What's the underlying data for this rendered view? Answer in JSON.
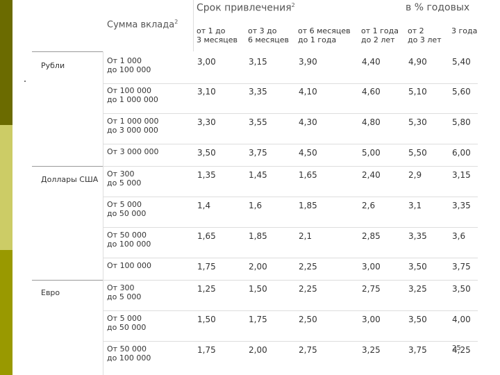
{
  "header": {
    "term_title": "Срок привлечения",
    "term_sup": "2",
    "unit": "в % годовых",
    "amount_title": "Сумма вклада",
    "amount_sup": "2"
  },
  "columns": [
    "от 1 до\n3 месяцев",
    "от 3 до\n6 месяцев",
    "от 6 месяцев\nдо 1 года",
    "от 1 года\nдо 2 лет",
    "от 2\nдо 3 лет",
    "3 года"
  ],
  "currencies": [
    "Рубли",
    "Доллары США",
    "Евро"
  ],
  "rows": [
    {
      "amount": "От 1 000\nдо 100 000",
      "values": [
        "3,00",
        "3,15",
        "3,90",
        "4,40",
        "4,90",
        "5,40"
      ]
    },
    {
      "amount": "От 100 000\nдо 1 000 000",
      "values": [
        "3,10",
        "3,35",
        "4,10",
        "4,60",
        "5,10",
        "5,60"
      ]
    },
    {
      "amount": "От 1 000 000\nдо 3 000 000",
      "values": [
        "3,30",
        "3,55",
        "4,30",
        "4,80",
        "5,30",
        "5,80"
      ]
    },
    {
      "amount": "От 3 000 000",
      "values": [
        "3,50",
        "3,75",
        "4,50",
        "5,00",
        "5,50",
        "6,00"
      ]
    },
    {
      "amount": "От 300\nдо 5 000",
      "values": [
        "1,35",
        "1,45",
        "1,65",
        "2,40",
        "2,9",
        "3,15"
      ]
    },
    {
      "amount": "От 5 000\nдо 50 000",
      "values": [
        "1,4",
        "1,6",
        "1,85",
        "2,6",
        "3,1",
        "3,35"
      ]
    },
    {
      "amount": "От 50 000\nдо 100 000",
      "values": [
        "1,65",
        "1,85",
        "2,1",
        "2,85",
        "3,35",
        "3,6"
      ]
    },
    {
      "amount": "От 100 000",
      "values": [
        "1,75",
        "2,00",
        "2,25",
        "3,00",
        "3,50",
        "3,75"
      ]
    },
    {
      "amount": "От 300\nдо 5 000",
      "values": [
        "1,25",
        "1,50",
        "2,25",
        "2,75",
        "3,25",
        "3,50"
      ]
    },
    {
      "amount": "От 5 000\nдо 50 000",
      "values": [
        "1,50",
        "1,75",
        "2,50",
        "3,00",
        "3,50",
        "4,00"
      ]
    },
    {
      "amount": "От 50 000\nдо 100 000",
      "values": [
        "1,75",
        "2,00",
        "2,75",
        "3,25",
        "3,75",
        "4,25"
      ]
    }
  ],
  "page_number": "25"
}
